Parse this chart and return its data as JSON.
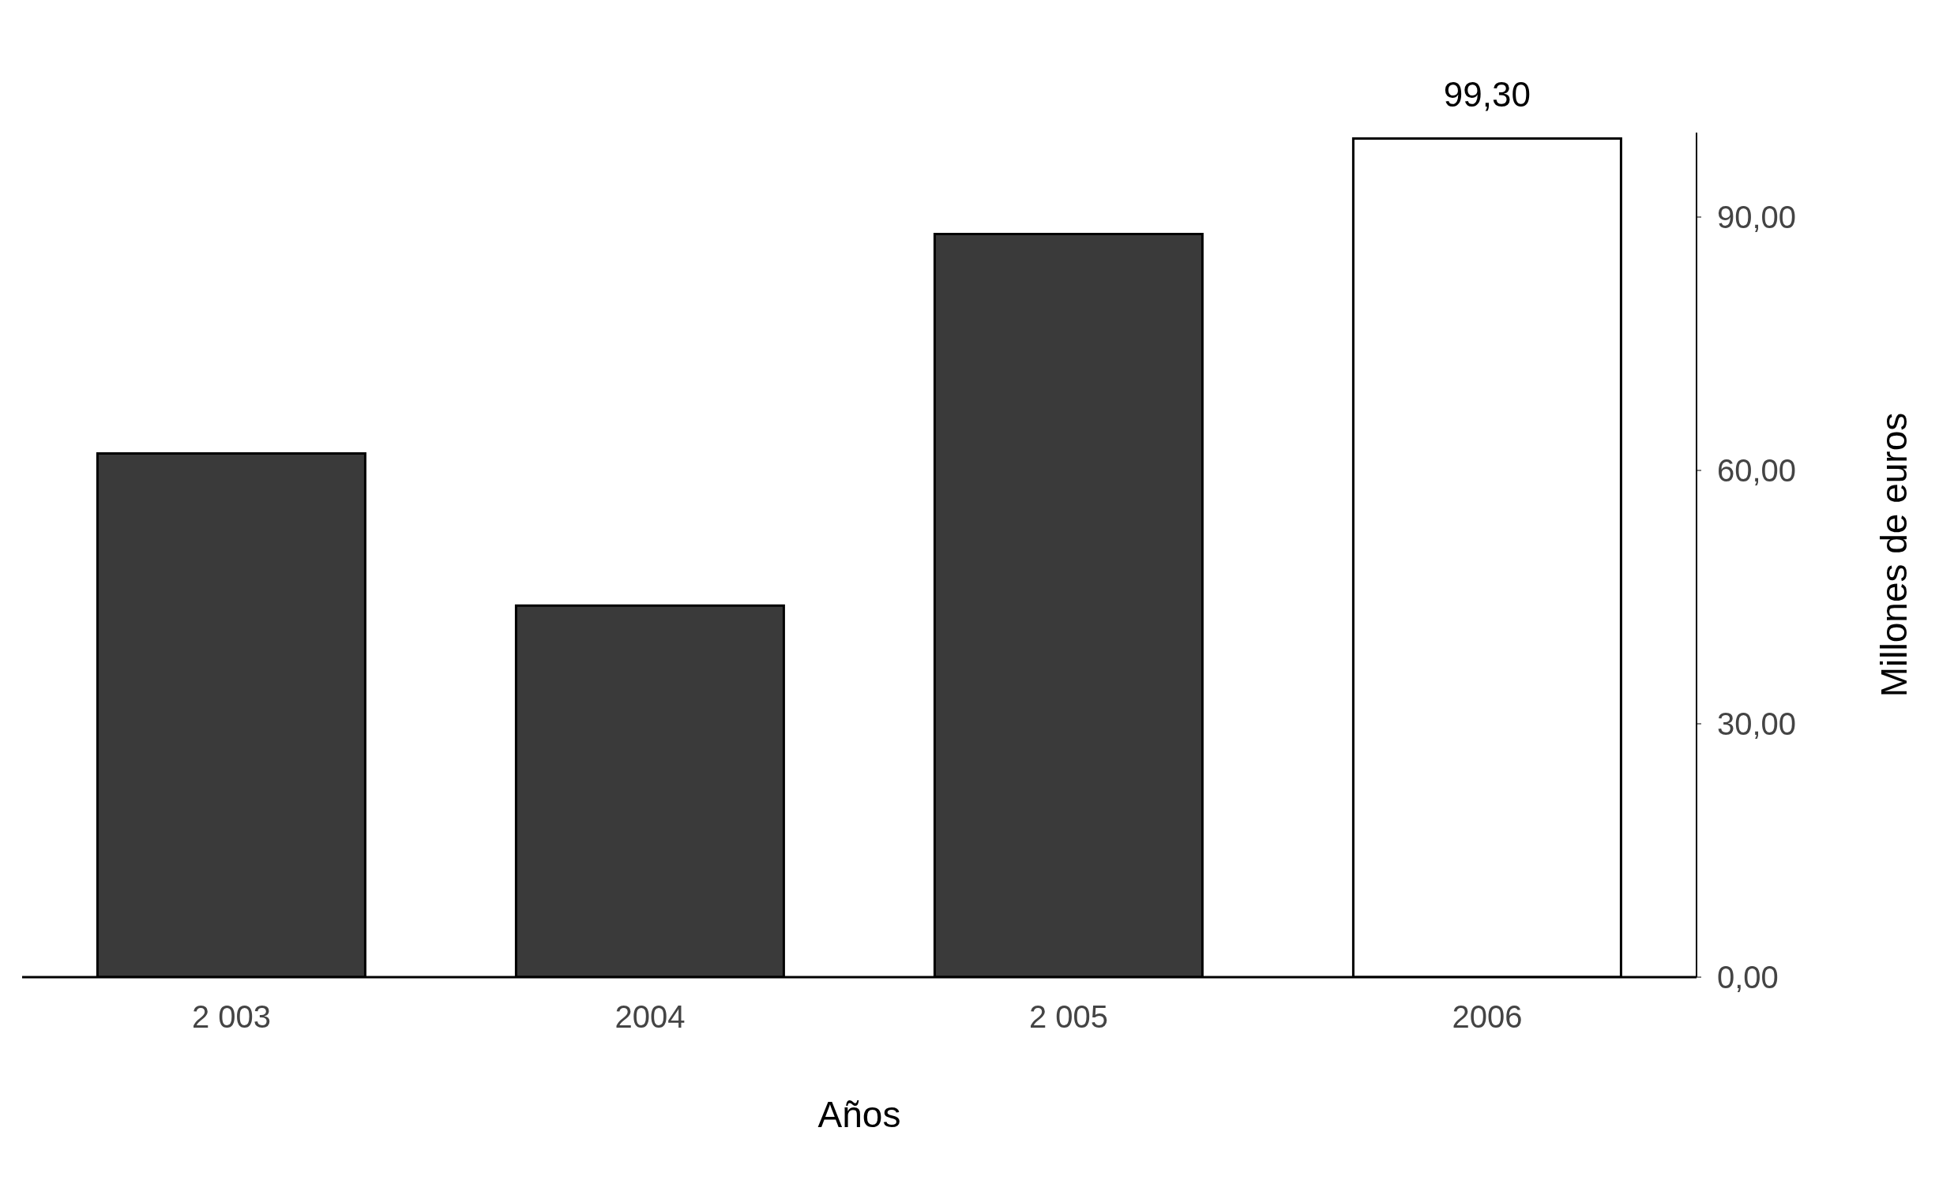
{
  "chart_data": {
    "type": "bar",
    "xlabel": "Años",
    "ylabel": "Millones de euros",
    "categories": [
      "2 003",
      "2004",
      "2 005",
      "2006"
    ],
    "values": [
      62,
      44,
      88,
      99.3
    ],
    "colors": [
      "#3a3a3a",
      "#3a3a3a",
      "#3a3a3a",
      "#ffffff"
    ],
    "value_labels": [
      null,
      null,
      null,
      "99,30"
    ],
    "ylim": [
      0,
      100
    ],
    "yticks": [
      {
        "value": 0,
        "label": "0,00"
      },
      {
        "value": 30,
        "label": "30,00"
      },
      {
        "value": 60,
        "label": "60,00"
      },
      {
        "value": 90,
        "label": "90,00"
      }
    ],
    "grid": false,
    "legend": false
  }
}
